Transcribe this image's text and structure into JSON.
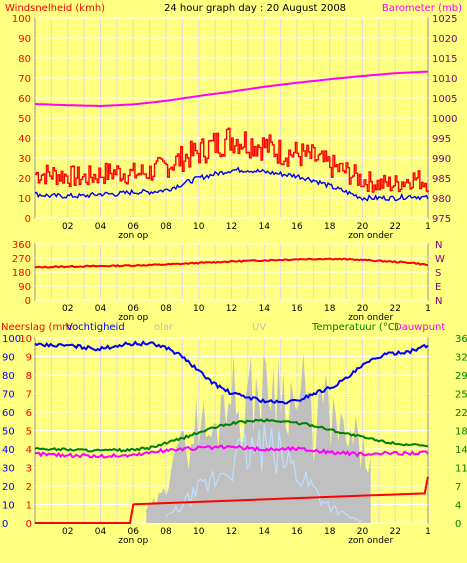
{
  "header": {
    "left_title": "Windsnelheid (kmh)",
    "center_title": "24 hour graph day : 20 August 2008",
    "right_title": "Barometer (mb)"
  },
  "colors": {
    "background": "#ffff80",
    "plot_bg": "#ffff80",
    "grid_major": "#ffffff",
    "grid_minor": "#d0d0ff",
    "wind_gust": "#ff0000",
    "wind_avg": "#0000ff",
    "barometer": "#ff00ff",
    "wind_dir": "#ff0000",
    "rain": "#ff0000",
    "humidity": "#0000ff",
    "temperature": "#008000",
    "dewpoint": "#ff00ff",
    "solar": "#c0c0c0",
    "uv": "#c0e0ff",
    "left_axis_text": "#ff0000",
    "right_axis_text": "#800080",
    "panel3_right_text": "#008000"
  },
  "x_axis": {
    "ticks": [
      "02",
      "04",
      "06",
      "08",
      "10",
      "12",
      "14",
      "16",
      "18",
      "20",
      "22",
      "1"
    ],
    "sunrise_label": "zon op",
    "sunset_label": "zon onder"
  },
  "chart_data": [
    {
      "type": "line",
      "panel": "wind_and_pressure",
      "y_left_ticks": [
        "100",
        "90",
        "80",
        "70",
        "60",
        "50",
        "40",
        "30",
        "20",
        "10",
        "0"
      ],
      "y_left_range": [
        0,
        100
      ],
      "y_right_ticks": [
        "1025",
        "1020",
        "1015",
        "1010",
        "1005",
        "1000",
        "995",
        "990",
        "985",
        "980",
        "975"
      ],
      "y_right_range": [
        975,
        1025
      ],
      "series": [
        {
          "name": "Windsnelheid (kmh)",
          "axis": "left",
          "x": [
            0,
            1,
            2,
            3,
            4,
            5,
            6,
            7,
            8,
            9,
            10,
            11,
            12,
            13,
            14,
            15,
            16,
            17,
            18,
            19,
            20,
            21,
            22,
            23,
            24
          ],
          "values": [
            22,
            22,
            21,
            20,
            22,
            23,
            22,
            23,
            26,
            30,
            33,
            37,
            40,
            38,
            36,
            33,
            32,
            30,
            26,
            23,
            19,
            17,
            17,
            20,
            18
          ]
        },
        {
          "name": "Windsnelheid gem.",
          "axis": "left",
          "x": [
            0,
            1,
            2,
            3,
            4,
            5,
            6,
            7,
            8,
            9,
            10,
            11,
            12,
            13,
            14,
            15,
            16,
            17,
            18,
            19,
            20,
            21,
            22,
            23,
            24
          ],
          "values": [
            12,
            11,
            11,
            11,
            12,
            12,
            13,
            13,
            14,
            17,
            20,
            22,
            24,
            24,
            23,
            22,
            21,
            19,
            16,
            13,
            10,
            10,
            10,
            11,
            10
          ]
        },
        {
          "name": "Barometer (mb)",
          "axis": "right",
          "x": [
            0,
            2,
            4,
            6,
            8,
            10,
            12,
            14,
            16,
            18,
            20,
            22,
            24
          ],
          "values": [
            1003.5,
            1003.2,
            1003,
            1003.4,
            1004.3,
            1005.5,
            1006.6,
            1007.8,
            1008.8,
            1009.7,
            1010.5,
            1011.2,
            1011.6
          ]
        }
      ]
    },
    {
      "type": "line",
      "panel": "wind_direction",
      "y_left_ticks": [
        "360",
        "270",
        "180",
        "90",
        "0"
      ],
      "y_left_range": [
        0,
        360
      ],
      "y_right_ticks": [
        "N",
        "W",
        "S",
        "E",
        "N"
      ],
      "series": [
        {
          "name": "Windrichting",
          "axis": "left",
          "x": [
            0,
            2,
            4,
            6,
            8,
            10,
            12,
            14,
            16,
            18,
            20,
            22,
            23,
            24
          ],
          "values": [
            210,
            215,
            218,
            222,
            228,
            238,
            248,
            255,
            262,
            265,
            258,
            245,
            240,
            225
          ]
        }
      ]
    },
    {
      "type": "area",
      "panel": "rain_humidity_temp",
      "labels": {
        "rain": "Neerslag (mm",
        "humidity": "Vochtigheid",
        "solar": "olar",
        "uv": "UV",
        "temperature": "Temperatuur (°C)",
        "dewpoint": "Dauwpunt"
      },
      "y_left_ticks": [
        "100",
        "90",
        "80",
        "70",
        "60",
        "50",
        "40",
        "30",
        "20",
        "10",
        "0"
      ],
      "y_rain_ticks": [
        "10",
        "9",
        "8",
        "7",
        "6",
        "5",
        "4",
        "3",
        "2",
        "1",
        "0"
      ],
      "y_right_ticks": [
        "36",
        "32",
        "29",
        "25",
        "22",
        "18",
        "14",
        "11",
        "7",
        "4",
        "0"
      ],
      "y_left_range": [
        0,
        100
      ],
      "y_right_range": [
        0,
        36
      ],
      "series": [
        {
          "name": "Vochtigheid",
          "axis": "left",
          "x": [
            0,
            2,
            4,
            5,
            6,
            7,
            8,
            9,
            10,
            11,
            12,
            13,
            14,
            15,
            16,
            17,
            18,
            19,
            20,
            21,
            22,
            23,
            24
          ],
          "values": [
            96,
            96,
            94,
            96,
            97,
            97,
            95,
            90,
            82,
            75,
            70,
            68,
            66,
            65,
            66,
            70,
            73,
            78,
            85,
            90,
            92,
            93,
            96
          ]
        },
        {
          "name": "Temperatuur (°C)",
          "axis": "right",
          "x": [
            0,
            2,
            4,
            6,
            7,
            8,
            9,
            10,
            11,
            12,
            13,
            14,
            15,
            16,
            17,
            18,
            19,
            20,
            21,
            22,
            23,
            24
          ],
          "values": [
            14.5,
            14.3,
            14.1,
            14.2,
            14.6,
            15.5,
            16.5,
            17.6,
            18.6,
            19.4,
            19.8,
            20,
            19.8,
            19.5,
            19,
            18.2,
            17.4,
            16.7,
            16,
            15.5,
            15.2,
            14.8
          ]
        },
        {
          "name": "Dauwpunt",
          "axis": "right",
          "x": [
            0,
            2,
            4,
            6,
            8,
            10,
            12,
            14,
            16,
            18,
            20,
            22,
            24
          ],
          "values": [
            13.5,
            13.2,
            13,
            13.2,
            14.2,
            14.6,
            14.8,
            14.3,
            14.5,
            13.8,
            13.3,
            13.6,
            13.7
          ]
        },
        {
          "name": "Neerslag (mm",
          "axis": "rain",
          "x": [
            0,
            5.8,
            6,
            9,
            20.6,
            23.8,
            24
          ],
          "values": [
            0,
            0,
            1,
            1.5,
            1.5,
            1.6,
            2.5
          ]
        },
        {
          "name": "olar",
          "axis": "left",
          "x": [
            6,
            7,
            8,
            8.5,
            9,
            9.5,
            10,
            10.5,
            11,
            11.5,
            12,
            12.5,
            13,
            13.5,
            14,
            14.5,
            15,
            15.5,
            16,
            16.5,
            17,
            17.5,
            18,
            18.5,
            19,
            19.5,
            20,
            20.5
          ],
          "values": [
            5,
            10,
            20,
            62,
            45,
            55,
            70,
            60,
            55,
            88,
            92,
            70,
            80,
            90,
            85,
            96,
            90,
            85,
            75,
            88,
            55,
            80,
            70,
            62,
            50,
            55,
            45,
            40
          ]
        },
        {
          "name": "UV",
          "axis": "left",
          "x": [
            8,
            9,
            10,
            11,
            12,
            13,
            14,
            15,
            16,
            17,
            18,
            19,
            20
          ],
          "values": [
            3,
            10,
            18,
            25,
            35,
            40,
            42,
            38,
            30,
            20,
            10,
            4,
            1
          ]
        }
      ]
    }
  ]
}
